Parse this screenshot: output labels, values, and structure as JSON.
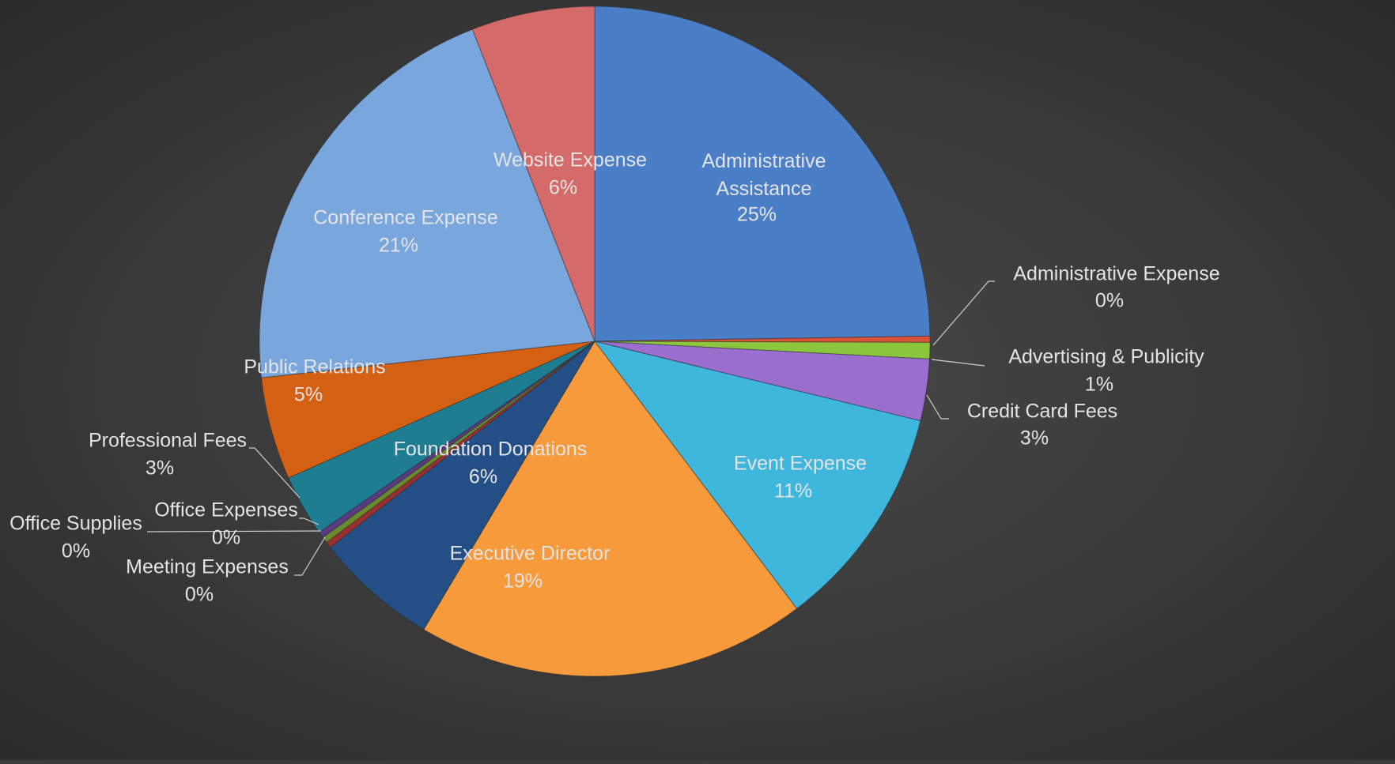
{
  "chart_data": {
    "type": "pie",
    "categories": [
      "Administrative Assistance",
      "Administrative Expense",
      "Advertising & Publicity",
      "Credit Card Fees",
      "Event Expense",
      "Executive Director",
      "Foundation Donations",
      "Meeting Expenses",
      "Office Supplies",
      "Office Expenses",
      "Professional Fees",
      "Public Relations",
      "Conference Expense",
      "Website Expense"
    ],
    "values": [
      25,
      0.3,
      0.8,
      3,
      11,
      19,
      6,
      0.3,
      0.3,
      0.3,
      3,
      5,
      21,
      6
    ],
    "value_labels": [
      "25%",
      "0%",
      "1%",
      "3%",
      "11%",
      "19%",
      "6%",
      "0%",
      "0%",
      "0%",
      "3%",
      "5%",
      "21%",
      "6%"
    ],
    "colors": [
      "#4a7fc8",
      "#d9533a",
      "#8cc63f",
      "#9b6fd0",
      "#3fb6dc",
      "#f79a3c",
      "#244f86",
      "#9a2f2f",
      "#6a8a30",
      "#5a3a80",
      "#1f7d92",
      "#d46014",
      "#7aa6de",
      "#d46a6a"
    ]
  }
}
